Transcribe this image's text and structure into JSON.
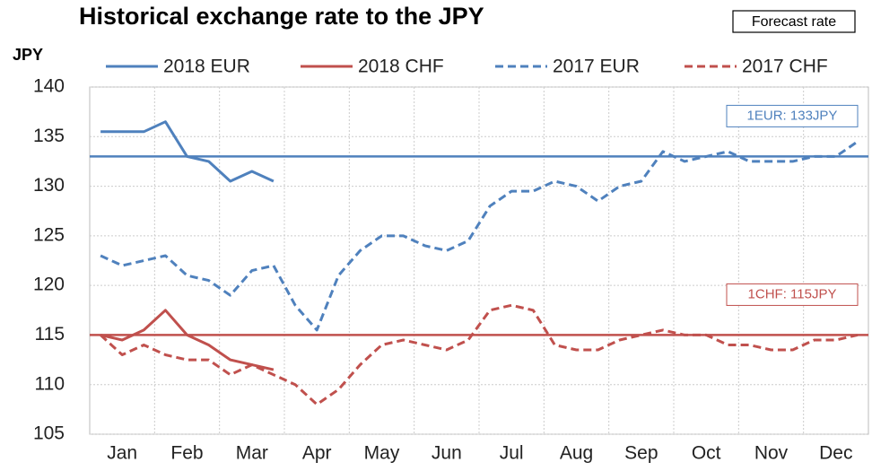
{
  "chart_data": {
    "type": "line",
    "title": "Historical exchange rate to the JPY",
    "y_label": "JPY",
    "badge": "Forecast rate",
    "categories": [
      null,
      "Jan",
      null,
      null,
      "Feb",
      null,
      null,
      "Mar",
      null,
      null,
      "Apr",
      null,
      null,
      "May",
      null,
      null,
      "Jun",
      null,
      null,
      "Jul",
      null,
      null,
      "Aug",
      null,
      null,
      "Sep",
      null,
      null,
      "Oct",
      null,
      null,
      "Nov",
      null,
      null,
      "Dec",
      null
    ],
    "series": [
      {
        "name": "2018 EUR",
        "color": "#4f81bd",
        "dashed": false,
        "values": [
          135.5,
          135.5,
          135.5,
          136.5,
          133,
          132.5,
          130.5,
          131.5,
          130.5,
          null,
          null,
          null,
          null,
          null,
          null,
          null,
          null,
          null,
          null,
          null,
          null,
          null,
          null,
          null,
          null,
          null,
          null,
          null,
          null,
          null,
          null,
          null,
          null,
          null,
          null,
          null
        ]
      },
      {
        "name": "2018 CHF",
        "color": "#c0504d",
        "dashed": false,
        "values": [
          115,
          114.5,
          115.5,
          117.5,
          115,
          114,
          112.5,
          112,
          111.5,
          null,
          null,
          null,
          null,
          null,
          null,
          null,
          null,
          null,
          null,
          null,
          null,
          null,
          null,
          null,
          null,
          null,
          null,
          null,
          null,
          null,
          null,
          null,
          null,
          null,
          null,
          null
        ]
      },
      {
        "name": "2017 EUR",
        "color": "#4f81bd",
        "dashed": true,
        "values": [
          123,
          122,
          122.5,
          123,
          121,
          120.5,
          119,
          121.5,
          122,
          118,
          115.5,
          121,
          123.5,
          125,
          125,
          124,
          123.5,
          124.5,
          128,
          129.5,
          129.5,
          130.5,
          130,
          128.5,
          130,
          130.5,
          133.5,
          132.5,
          133,
          133.5,
          132.5,
          132.5,
          132.5,
          133,
          133,
          134.5
        ]
      },
      {
        "name": "2017 CHF",
        "color": "#c0504d",
        "dashed": true,
        "values": [
          115,
          113,
          114,
          113,
          112.5,
          112.5,
          111,
          112,
          111,
          110,
          108,
          109.5,
          112,
          114,
          114.5,
          114,
          113.5,
          114.5,
          117.5,
          118,
          117.5,
          114,
          113.5,
          113.5,
          114.5,
          115,
          115.5,
          115,
          115,
          114,
          114,
          113.5,
          113.5,
          114.5,
          114.5,
          115
        ]
      }
    ],
    "reference_lines": [
      {
        "value": 133,
        "label": "1EUR: 133JPY",
        "color": "#4f81bd"
      },
      {
        "value": 115,
        "label": "1CHF: 115JPY",
        "color": "#c0504d"
      }
    ],
    "ylim": [
      105,
      140
    ],
    "yticks": [
      105,
      110,
      115,
      120,
      125,
      130,
      135,
      140
    ],
    "grid": true
  }
}
